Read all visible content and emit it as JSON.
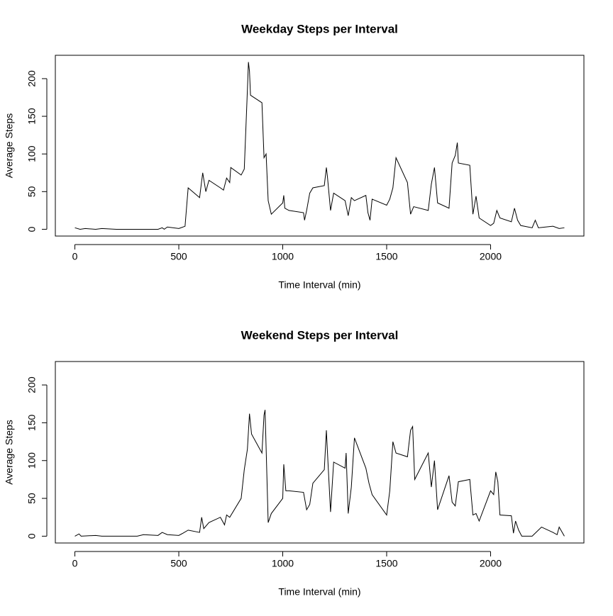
{
  "chart_data": [
    {
      "type": "line",
      "title": "Weekday Steps per Interval",
      "xlabel": "Time Interval (min)",
      "ylabel": "Average Steps",
      "x": [
        0,
        25,
        50,
        100,
        130,
        200,
        300,
        400,
        420,
        430,
        445,
        500,
        530,
        545,
        600,
        615,
        630,
        645,
        700,
        715,
        730,
        745,
        750,
        800,
        815,
        830,
        835,
        840,
        845,
        900,
        910,
        920,
        930,
        945,
        1000,
        1005,
        1010,
        1030,
        1100,
        1105,
        1115,
        1130,
        1145,
        1200,
        1210,
        1215,
        1230,
        1245,
        1300,
        1315,
        1330,
        1345,
        1400,
        1410,
        1420,
        1430,
        1500,
        1515,
        1530,
        1545,
        1600,
        1615,
        1630,
        1700,
        1715,
        1730,
        1745,
        1800,
        1815,
        1830,
        1840,
        1845,
        1900,
        1915,
        1930,
        1945,
        2000,
        2015,
        2030,
        2045,
        2100,
        2115,
        2130,
        2145,
        2200,
        2215,
        2230,
        2300,
        2330,
        2355
      ],
      "values": [
        2,
        0,
        1,
        0,
        1,
        0,
        0,
        0,
        2,
        0,
        3,
        1,
        4,
        55,
        42,
        75,
        50,
        65,
        55,
        52,
        68,
        62,
        82,
        72,
        80,
        185,
        222,
        210,
        178,
        168,
        95,
        100,
        38,
        20,
        35,
        45,
        28,
        25,
        22,
        12,
        25,
        48,
        55,
        58,
        82,
        70,
        25,
        48,
        38,
        18,
        42,
        38,
        45,
        22,
        12,
        40,
        32,
        40,
        55,
        95,
        62,
        20,
        30,
        25,
        60,
        82,
        35,
        28,
        88,
        98,
        115,
        88,
        85,
        20,
        44,
        15,
        5,
        8,
        25,
        15,
        10,
        28,
        12,
        5,
        2,
        12,
        2,
        4,
        1,
        2
      ],
      "color": "#000000",
      "xlim": [
        -94,
        2449
      ],
      "ylim": [
        -9,
        231
      ],
      "xticks": [
        0,
        500,
        1000,
        1500,
        2000
      ],
      "yticks": [
        0,
        50,
        100,
        150,
        200
      ]
    },
    {
      "type": "line",
      "title": "Weekend Steps per Interval",
      "xlabel": "Time Interval (min)",
      "ylabel": "Average Steps",
      "x": [
        0,
        20,
        30,
        100,
        130,
        300,
        330,
        400,
        420,
        445,
        500,
        520,
        545,
        600,
        610,
        620,
        645,
        700,
        720,
        730,
        745,
        800,
        815,
        830,
        840,
        850,
        900,
        910,
        915,
        930,
        945,
        1000,
        1005,
        1015,
        1030,
        1100,
        1115,
        1130,
        1145,
        1200,
        1210,
        1215,
        1230,
        1245,
        1300,
        1305,
        1315,
        1330,
        1345,
        1400,
        1415,
        1430,
        1500,
        1515,
        1530,
        1545,
        1600,
        1615,
        1625,
        1635,
        1700,
        1715,
        1730,
        1745,
        1800,
        1815,
        1830,
        1845,
        1900,
        1915,
        1930,
        1945,
        2000,
        2015,
        2025,
        2035,
        2045,
        2100,
        2110,
        2120,
        2135,
        2150,
        2200,
        2245,
        2300,
        2320,
        2330,
        2355
      ],
      "values": [
        0,
        3,
        0,
        1,
        0,
        0,
        2,
        1,
        5,
        2,
        1,
        4,
        8,
        5,
        25,
        10,
        18,
        25,
        15,
        28,
        25,
        50,
        88,
        115,
        162,
        135,
        110,
        160,
        167,
        18,
        30,
        50,
        95,
        60,
        60,
        58,
        35,
        42,
        70,
        88,
        140,
        112,
        32,
        98,
        90,
        110,
        30,
        65,
        130,
        90,
        70,
        55,
        28,
        60,
        125,
        110,
        105,
        140,
        145,
        75,
        110,
        65,
        100,
        35,
        80,
        45,
        40,
        72,
        75,
        28,
        30,
        20,
        60,
        55,
        85,
        72,
        28,
        27,
        4,
        20,
        8,
        0,
        0,
        12,
        5,
        2,
        12,
        0
      ],
      "color": "#000000",
      "xlim": [
        -94,
        2449
      ],
      "ylim": [
        -9,
        231
      ],
      "xticks": [
        0,
        500,
        1000,
        1500,
        2000
      ],
      "yticks": [
        0,
        50,
        100,
        150,
        200
      ]
    }
  ]
}
